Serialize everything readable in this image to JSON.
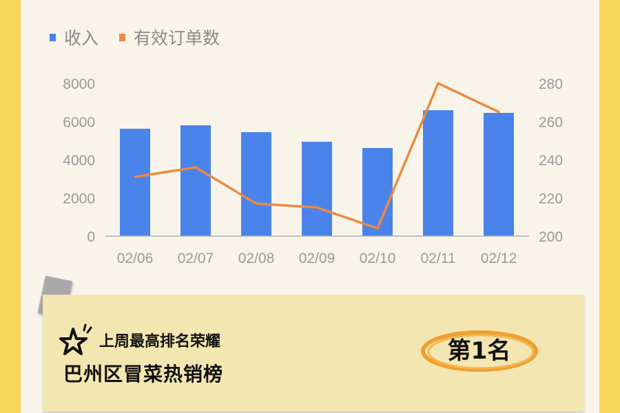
{
  "chart_data": {
    "type": "bar+line",
    "categories": [
      "02/06",
      "02/07",
      "02/08",
      "02/09",
      "02/10",
      "02/11",
      "02/12"
    ],
    "series": [
      {
        "name": "收入",
        "type": "bar",
        "axis": "left",
        "color": "#4a83ea",
        "values": [
          5620,
          5800,
          5440,
          4940,
          4610,
          6590,
          6450
        ]
      },
      {
        "name": "有效订单数",
        "type": "line",
        "axis": "right",
        "color": "#ec8a42",
        "values": [
          231,
          236,
          217,
          215,
          204,
          280,
          265
        ]
      }
    ],
    "y_left": {
      "range": [
        0,
        8000
      ],
      "ticks": [
        "0",
        "2000",
        "4000",
        "6000",
        "8000"
      ]
    },
    "y_right": {
      "range": [
        200,
        280
      ],
      "ticks": [
        "200",
        "220",
        "240",
        "260",
        "280"
      ]
    },
    "legend": "top-left",
    "grid": false
  },
  "card": {
    "subtitle": "上周最高排名荣耀",
    "title": "巴州区冒菜热销榜",
    "rank": "第1名",
    "accent": "#f0a030"
  }
}
